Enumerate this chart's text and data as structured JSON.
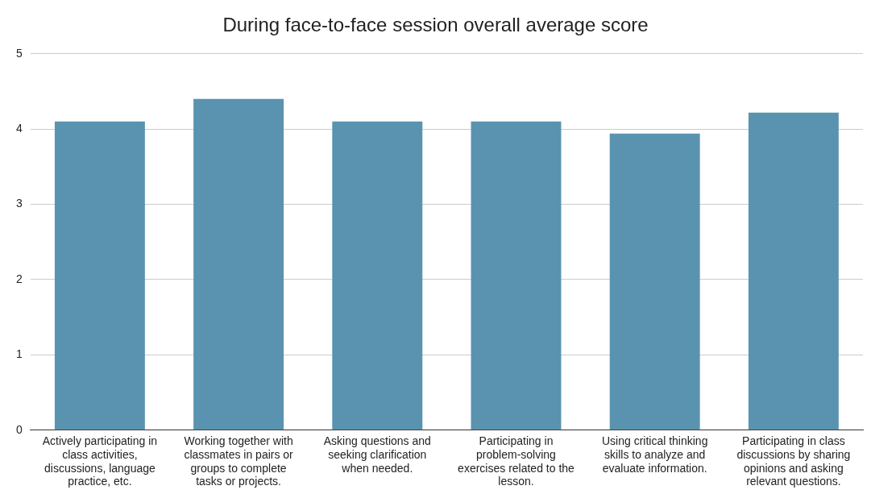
{
  "chart_data": {
    "type": "bar",
    "title": "During face-to-face session overall average score",
    "categories": [
      "Actively participating in class activities, discussions, language practice, etc.",
      "Working together with classmates in pairs or groups to complete tasks or projects.",
      "Asking questions and seeking clarification when needed.",
      "Participating in problem-solving exercises related to the lesson.",
      "Using critical thinking skills to analyze and evaluate information.",
      "Participating in class discussions by sharing opinions and asking relevant questions."
    ],
    "values": [
      4.1,
      4.4,
      4.1,
      4.1,
      3.94,
      4.22
    ],
    "color": "#5a93b0",
    "ylim": [
      0,
      5
    ],
    "yticks": [
      0,
      1,
      2,
      3,
      4,
      5
    ],
    "grid": "y"
  }
}
